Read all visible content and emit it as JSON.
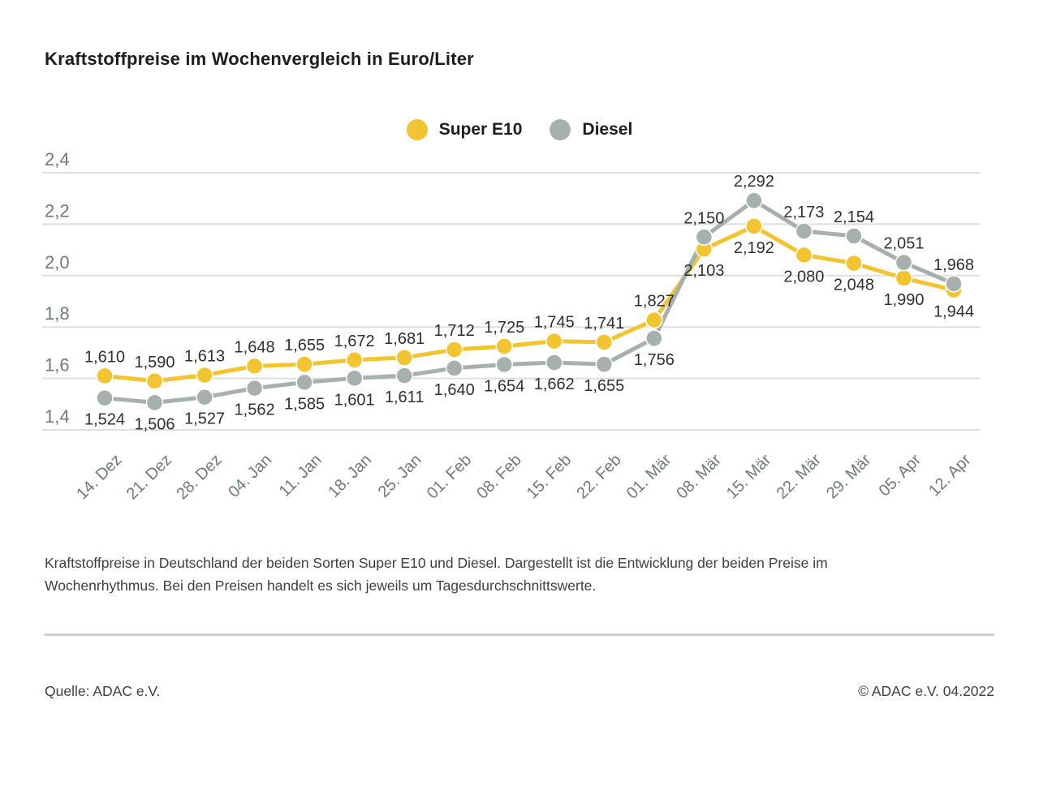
{
  "chart_data": {
    "type": "line",
    "title": "Kraftstoffpreise im Wochenvergleich in Euro/Liter",
    "unit": "Euro/Liter",
    "categories": [
      "14. Dez",
      "21. Dez",
      "28. Dez",
      "04. Jan",
      "11. Jan",
      "18. Jan",
      "25. Jan",
      "01. Feb",
      "08. Feb",
      "15. Feb",
      "22. Feb",
      "01. Mär",
      "08. Mär",
      "15. Mär",
      "22. Mär",
      "29. Mär",
      "05. Apr",
      "12. Apr"
    ],
    "series": [
      {
        "name": "Super E10",
        "color": "#F2C42F",
        "values": [
          1.61,
          1.59,
          1.613,
          1.648,
          1.655,
          1.672,
          1.681,
          1.712,
          1.725,
          1.745,
          1.741,
          1.827,
          2.103,
          2.192,
          2.08,
          2.048,
          1.99,
          1.944
        ]
      },
      {
        "name": "Diesel",
        "color": "#A6B0AE",
        "values": [
          1.524,
          1.506,
          1.527,
          1.562,
          1.585,
          1.601,
          1.611,
          1.64,
          1.654,
          1.662,
          1.655,
          1.756,
          2.15,
          2.292,
          2.173,
          2.154,
          2.051,
          1.968
        ]
      }
    ],
    "ylim": [
      1.4,
      2.4
    ],
    "yticks": [
      2.4,
      2.2,
      2.0,
      1.8,
      1.6,
      1.4
    ],
    "grid": true,
    "legend_position": "top-center",
    "decimal_separator": ","
  },
  "colors": {
    "gridline": "#DDE0DE",
    "axis_text": "#6E7B79",
    "value_label_text": "#303030",
    "divider": "#C7CDCC",
    "title_text": "#1D1D1B",
    "body_text": "#3C4240"
  },
  "caption": {
    "lines": [
      "Kraftstoffpreise in Deutschland der beiden Sorten Super E10 und Diesel. Dargestellt ist die Entwicklung der beiden Preise im",
      "Wochenrhythmus. Bei den Preisen handelt es sich jeweils um Tagesdurchschnittswerte."
    ]
  },
  "footer": {
    "source": "Quelle: ADAC e.V.",
    "copyright": "© ADAC e.V. 04.2022"
  }
}
